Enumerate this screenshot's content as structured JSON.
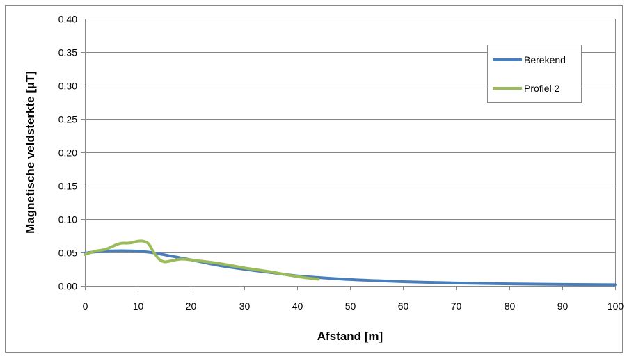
{
  "chart_data": {
    "type": "line",
    "title": "",
    "xlabel": "Afstand [m]",
    "ylabel": "Magnetische veldsterkte [µT]",
    "xlim": [
      0,
      100
    ],
    "ylim": [
      0,
      0.4
    ],
    "x_ticks": [
      "0",
      "10",
      "20",
      "30",
      "40",
      "50",
      "60",
      "70",
      "80",
      "90",
      "100"
    ],
    "y_ticks": [
      "0.00",
      "0.05",
      "0.10",
      "0.15",
      "0.20",
      "0.25",
      "0.30",
      "0.35",
      "0.40"
    ],
    "grid": "horizontal",
    "legend_position": "top-right",
    "series": [
      {
        "name": "Berekend",
        "color": "#4a7ebb",
        "points": [
          [
            0,
            0.049
          ],
          [
            2,
            0.051
          ],
          [
            4,
            0.052
          ],
          [
            6,
            0.0525
          ],
          [
            8,
            0.0525
          ],
          [
            10,
            0.052
          ],
          [
            12,
            0.0505
          ],
          [
            14,
            0.048
          ],
          [
            16,
            0.045
          ],
          [
            18,
            0.042
          ],
          [
            20,
            0.039
          ],
          [
            25,
            0.031
          ],
          [
            30,
            0.025
          ],
          [
            35,
            0.02
          ],
          [
            40,
            0.015
          ],
          [
            45,
            0.012
          ],
          [
            50,
            0.0095
          ],
          [
            55,
            0.0078
          ],
          [
            60,
            0.0063
          ],
          [
            65,
            0.0052
          ],
          [
            70,
            0.0043
          ],
          [
            75,
            0.0036
          ],
          [
            80,
            0.003
          ],
          [
            85,
            0.0026
          ],
          [
            90,
            0.0022
          ],
          [
            95,
            0.0019
          ],
          [
            100,
            0.0017
          ]
        ]
      },
      {
        "name": "Profiel 2",
        "color": "#9bbb59",
        "points": [
          [
            0,
            0.047
          ],
          [
            2,
            0.052
          ],
          [
            4,
            0.055
          ],
          [
            6,
            0.062
          ],
          [
            7,
            0.064
          ],
          [
            8,
            0.064
          ],
          [
            9,
            0.065
          ],
          [
            10,
            0.067
          ],
          [
            11,
            0.067
          ],
          [
            12,
            0.063
          ],
          [
            13,
            0.05
          ],
          [
            14,
            0.04
          ],
          [
            15,
            0.036
          ],
          [
            16,
            0.037
          ],
          [
            18,
            0.04
          ],
          [
            20,
            0.039
          ],
          [
            22,
            0.037
          ],
          [
            25,
            0.034
          ],
          [
            30,
            0.027
          ],
          [
            35,
            0.021
          ],
          [
            40,
            0.014
          ],
          [
            44,
            0.01
          ]
        ]
      }
    ]
  }
}
